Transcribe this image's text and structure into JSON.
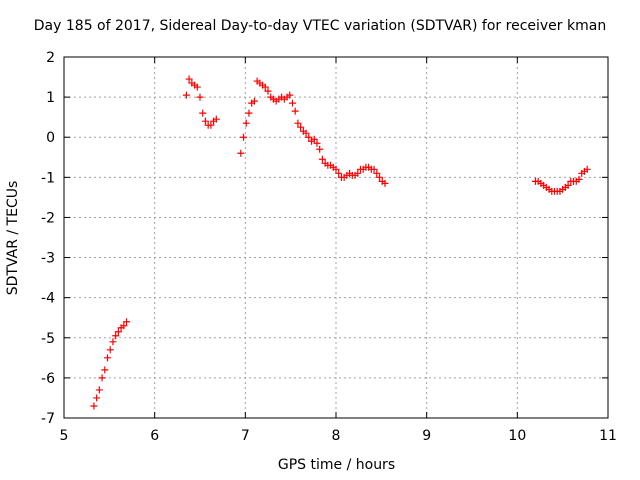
{
  "chart_data": {
    "type": "scatter",
    "title": "Day 185 of 2017, Sidereal Day-to-day VTEC variation (SDTVAR) for receiver kman",
    "xlabel": "GPS time / hours",
    "ylabel": "SDTVAR / TECUs",
    "xlim": [
      5,
      11
    ],
    "ylim": [
      -7,
      2
    ],
    "xticks": [
      "5",
      "6",
      "7",
      "8",
      "9",
      "10",
      "11"
    ],
    "yticks": [
      "2",
      "1",
      "0",
      "-1",
      "-2",
      "-3",
      "-4",
      "-5",
      "-6",
      "-7"
    ],
    "grid": true,
    "marker": "plus",
    "color": "#ff0000",
    "series": [
      {
        "x": [
          5.33,
          5.36,
          5.39,
          5.42,
          5.45,
          5.48,
          5.51,
          5.54,
          5.57,
          5.6,
          5.63,
          5.66,
          5.69,
          6.35,
          6.38,
          6.41,
          6.44,
          6.47,
          6.5,
          6.53,
          6.56,
          6.59,
          6.62,
          6.65,
          6.68,
          6.95,
          6.98,
          7.01,
          7.04,
          7.07,
          7.1,
          7.13,
          7.16,
          7.19,
          7.22,
          7.25,
          7.28,
          7.31,
          7.34,
          7.37,
          7.4,
          7.43,
          7.46,
          7.49,
          7.52,
          7.55,
          7.58,
          7.61,
          7.64,
          7.67,
          7.7,
          7.73,
          7.76,
          7.79,
          7.82,
          7.85,
          7.88,
          7.91,
          7.94,
          7.97,
          8.0,
          8.03,
          8.06,
          8.09,
          8.12,
          8.15,
          8.18,
          8.21,
          8.24,
          8.27,
          8.3,
          8.33,
          8.36,
          8.39,
          8.42,
          8.45,
          8.48,
          8.51,
          8.54,
          10.2,
          10.23,
          10.26,
          10.29,
          10.32,
          10.35,
          10.38,
          10.41,
          10.44,
          10.47,
          10.5,
          10.53,
          10.56,
          10.59,
          10.62,
          10.65,
          10.68,
          10.71,
          10.74,
          10.77
        ],
        "y": [
          -6.7,
          -6.5,
          -6.3,
          -6.0,
          -5.8,
          -5.5,
          -5.3,
          -5.1,
          -4.95,
          -4.85,
          -4.75,
          -4.7,
          -4.6,
          1.05,
          1.45,
          1.35,
          1.3,
          1.25,
          1.0,
          0.6,
          0.4,
          0.3,
          0.3,
          0.4,
          0.45,
          -0.4,
          0.0,
          0.35,
          0.6,
          0.85,
          0.9,
          1.4,
          1.35,
          1.3,
          1.25,
          1.15,
          1.0,
          0.95,
          0.9,
          0.95,
          1.0,
          0.95,
          1.0,
          1.05,
          0.85,
          0.65,
          0.35,
          0.25,
          0.15,
          0.1,
          0.0,
          -0.1,
          -0.05,
          -0.15,
          -0.3,
          -0.55,
          -0.65,
          -0.7,
          -0.7,
          -0.75,
          -0.8,
          -0.9,
          -1.0,
          -1.0,
          -0.95,
          -0.9,
          -0.95,
          -0.95,
          -0.9,
          -0.8,
          -0.8,
          -0.75,
          -0.75,
          -0.8,
          -0.8,
          -0.9,
          -1.0,
          -1.1,
          -1.15,
          -1.1,
          -1.1,
          -1.15,
          -1.2,
          -1.25,
          -1.3,
          -1.35,
          -1.35,
          -1.35,
          -1.35,
          -1.3,
          -1.25,
          -1.2,
          -1.1,
          -1.1,
          -1.1,
          -1.05,
          -0.9,
          -0.85,
          -0.8
        ]
      }
    ]
  }
}
